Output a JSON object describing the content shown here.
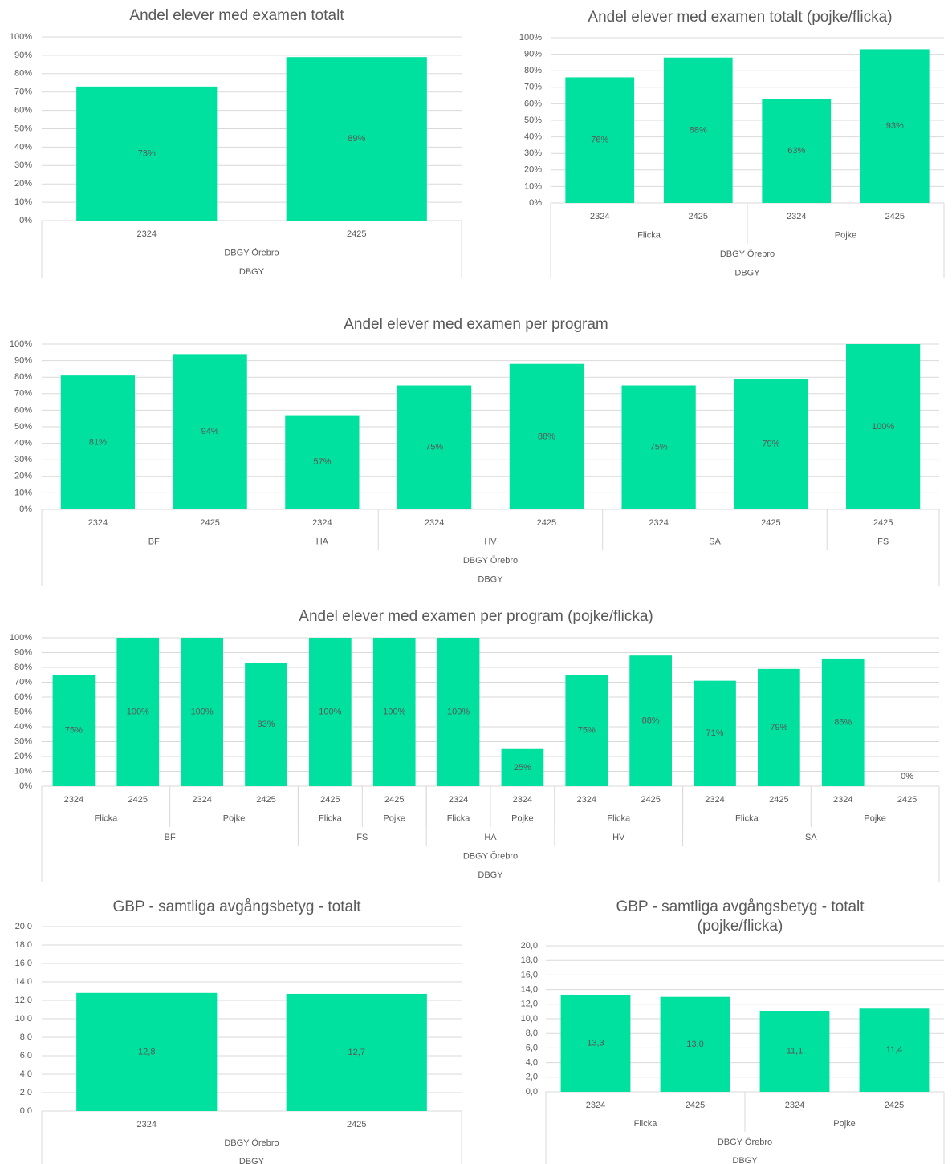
{
  "chart_data": [
    {
      "type": "bar",
      "title": "Andel elever med examen totalt",
      "color": "#00e09e",
      "grid": true,
      "categories": [
        "2324",
        "2425"
      ],
      "category_levels": [
        [
          {
            "label": "DBGY Örebro",
            "span": 2
          }
        ],
        [
          {
            "label": "DBGY",
            "span": 2
          }
        ]
      ],
      "values": [
        73,
        89
      ],
      "value_labels": [
        "73%",
        "89%"
      ],
      "ylim": [
        0,
        100
      ],
      "yticks": [
        {
          "value": 0,
          "label": "0%"
        },
        {
          "value": 10,
          "label": "10%"
        },
        {
          "value": 20,
          "label": "20%"
        },
        {
          "value": 30,
          "label": "30%"
        },
        {
          "value": 40,
          "label": "40%"
        },
        {
          "value": 50,
          "label": "50%"
        },
        {
          "value": 60,
          "label": "60%"
        },
        {
          "value": 70,
          "label": "70%"
        },
        {
          "value": 80,
          "label": "80%"
        },
        {
          "value": 90,
          "label": "90%"
        },
        {
          "value": 100,
          "label": "100%"
        }
      ]
    },
    {
      "type": "bar",
      "title": "Andel elever med examen totalt (pojke/flicka)",
      "color": "#00e09e",
      "grid": true,
      "categories": [
        "2324",
        "2425",
        "2324",
        "2425"
      ],
      "category_levels": [
        [
          {
            "label": "Flicka",
            "span": 2
          },
          {
            "label": "Pojke",
            "span": 2
          }
        ],
        [
          {
            "label": "DBGY Örebro",
            "span": 4
          }
        ],
        [
          {
            "label": "DBGY",
            "span": 4
          }
        ]
      ],
      "values": [
        76,
        88,
        63,
        93
      ],
      "value_labels": [
        "76%",
        "88%",
        "63%",
        "93%"
      ],
      "ylim": [
        0,
        100
      ],
      "yticks": [
        {
          "value": 0,
          "label": "0%"
        },
        {
          "value": 10,
          "label": "10%"
        },
        {
          "value": 20,
          "label": "20%"
        },
        {
          "value": 30,
          "label": "30%"
        },
        {
          "value": 40,
          "label": "40%"
        },
        {
          "value": 50,
          "label": "50%"
        },
        {
          "value": 60,
          "label": "60%"
        },
        {
          "value": 70,
          "label": "70%"
        },
        {
          "value": 80,
          "label": "80%"
        },
        {
          "value": 90,
          "label": "90%"
        },
        {
          "value": 100,
          "label": "100%"
        }
      ]
    },
    {
      "type": "bar",
      "title": "Andel elever med examen per program",
      "color": "#00e09e",
      "grid": true,
      "categories": [
        "2324",
        "2425",
        "2324",
        "2324",
        "2425",
        "2324",
        "2425",
        "2425"
      ],
      "category_levels": [
        [
          {
            "label": "BF",
            "span": 2
          },
          {
            "label": "HA",
            "span": 1
          },
          {
            "label": "HV",
            "span": 2
          },
          {
            "label": "SA",
            "span": 2
          },
          {
            "label": "FS",
            "span": 1
          }
        ],
        [
          {
            "label": "DBGY Örebro",
            "span": 8
          }
        ],
        [
          {
            "label": "DBGY",
            "span": 8
          }
        ]
      ],
      "values": [
        81,
        94,
        57,
        75,
        88,
        75,
        79,
        100
      ],
      "value_labels": [
        "81%",
        "94%",
        "57%",
        "75%",
        "88%",
        "75%",
        "79%",
        "100%"
      ],
      "ylim": [
        0,
        100
      ],
      "yticks": [
        {
          "value": 0,
          "label": "0%"
        },
        {
          "value": 10,
          "label": "10%"
        },
        {
          "value": 20,
          "label": "20%"
        },
        {
          "value": 30,
          "label": "30%"
        },
        {
          "value": 40,
          "label": "40%"
        },
        {
          "value": 50,
          "label": "50%"
        },
        {
          "value": 60,
          "label": "60%"
        },
        {
          "value": 70,
          "label": "70%"
        },
        {
          "value": 80,
          "label": "80%"
        },
        {
          "value": 90,
          "label": "90%"
        },
        {
          "value": 100,
          "label": "100%"
        }
      ]
    },
    {
      "type": "bar",
      "title": "Andel elever med examen per program (pojke/flicka)",
      "color": "#00e09e",
      "grid": true,
      "categories": [
        "2324",
        "2425",
        "2324",
        "2425",
        "2425",
        "2425",
        "2324",
        "2324",
        "2324",
        "2425",
        "2324",
        "2425",
        "2324",
        "2425"
      ],
      "category_levels": [
        [
          {
            "label": "Flicka",
            "span": 2
          },
          {
            "label": "Pojke",
            "span": 2
          },
          {
            "label": "Flicka",
            "span": 1
          },
          {
            "label": "Pojke",
            "span": 1
          },
          {
            "label": "Flicka",
            "span": 1
          },
          {
            "label": "Pojke",
            "span": 1
          },
          {
            "label": "Flicka",
            "span": 2
          },
          {
            "label": "Flicka",
            "span": 2
          },
          {
            "label": "Pojke",
            "span": 2
          }
        ],
        [
          {
            "label": "BF",
            "span": 4
          },
          {
            "label": "FS",
            "span": 2
          },
          {
            "label": "HA",
            "span": 2
          },
          {
            "label": "HV",
            "span": 2
          },
          {
            "label": "SA",
            "span": 4
          }
        ],
        [
          {
            "label": "DBGY Örebro",
            "span": 14
          }
        ],
        [
          {
            "label": "DBGY",
            "span": 14
          }
        ]
      ],
      "values": [
        75,
        100,
        100,
        83,
        100,
        100,
        100,
        25,
        75,
        88,
        71,
        79,
        86,
        0
      ],
      "value_labels": [
        "75%",
        "100%",
        "100%",
        "83%",
        "100%",
        "100%",
        "100%",
        "25%",
        "75%",
        "88%",
        "71%",
        "79%",
        "86%",
        "0%"
      ],
      "ylim": [
        0,
        100
      ],
      "yticks": [
        {
          "value": 0,
          "label": "0%"
        },
        {
          "value": 10,
          "label": "10%"
        },
        {
          "value": 20,
          "label": "20%"
        },
        {
          "value": 30,
          "label": "30%"
        },
        {
          "value": 40,
          "label": "40%"
        },
        {
          "value": 50,
          "label": "50%"
        },
        {
          "value": 60,
          "label": "60%"
        },
        {
          "value": 70,
          "label": "70%"
        },
        {
          "value": 80,
          "label": "80%"
        },
        {
          "value": 90,
          "label": "90%"
        },
        {
          "value": 100,
          "label": "100%"
        }
      ]
    },
    {
      "type": "bar",
      "title": "GBP - samtliga avgångsbetyg - totalt",
      "color": "#00e09e",
      "grid": true,
      "categories": [
        "2324",
        "2425"
      ],
      "category_levels": [
        [
          {
            "label": "DBGY Örebro",
            "span": 2
          }
        ],
        [
          {
            "label": "DBGY",
            "span": 2
          }
        ]
      ],
      "values": [
        12.8,
        12.7
      ],
      "value_labels": [
        "12,8",
        "12,7"
      ],
      "ylim": [
        0,
        20
      ],
      "yticks": [
        {
          "value": 0,
          "label": "0,0"
        },
        {
          "value": 2,
          "label": "2,0"
        },
        {
          "value": 4,
          "label": "4,0"
        },
        {
          "value": 6,
          "label": "6,0"
        },
        {
          "value": 8,
          "label": "8,0"
        },
        {
          "value": 10,
          "label": "10,0"
        },
        {
          "value": 12,
          "label": "12,0"
        },
        {
          "value": 14,
          "label": "14,0"
        },
        {
          "value": 16,
          "label": "16,0"
        },
        {
          "value": 18,
          "label": "18,0"
        },
        {
          "value": 20,
          "label": "20,0"
        }
      ]
    },
    {
      "type": "bar",
      "title": "GBP - samtliga avgångsbetyg - totalt (pojke/flicka)",
      "color": "#00e09e",
      "grid": true,
      "categories": [
        "2324",
        "2425",
        "2324",
        "2425"
      ],
      "category_levels": [
        [
          {
            "label": "Flicka",
            "span": 2
          },
          {
            "label": "Pojke",
            "span": 2
          }
        ],
        [
          {
            "label": "DBGY Örebro",
            "span": 4
          }
        ],
        [
          {
            "label": "DBGY",
            "span": 4
          }
        ]
      ],
      "values": [
        13.3,
        13.0,
        11.1,
        11.4
      ],
      "value_labels": [
        "13,3",
        "13,0",
        "11,1",
        "11,4"
      ],
      "ylim": [
        0,
        20
      ],
      "yticks": [
        {
          "value": 0,
          "label": "0,0"
        },
        {
          "value": 2,
          "label": "2,0"
        },
        {
          "value": 4,
          "label": "4,0"
        },
        {
          "value": 6,
          "label": "6,0"
        },
        {
          "value": 8,
          "label": "8,0"
        },
        {
          "value": 10,
          "label": "10,0"
        },
        {
          "value": 12,
          "label": "12,0"
        },
        {
          "value": 14,
          "label": "14,0"
        },
        {
          "value": 16,
          "label": "16,0"
        },
        {
          "value": 18,
          "label": "18,0"
        },
        {
          "value": 20,
          "label": "20,0"
        }
      ]
    }
  ]
}
